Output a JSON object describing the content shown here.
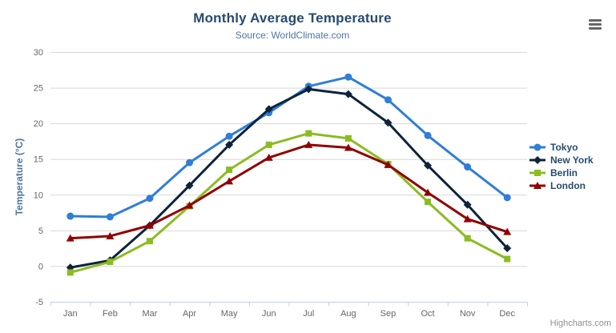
{
  "header": {
    "title": "Monthly Average Temperature",
    "subtitle": "Source: WorldClimate.com"
  },
  "chart_data": {
    "type": "line",
    "title": "Monthly Average Temperature",
    "subtitle": "Source: WorldClimate.com",
    "categories": [
      "Jan",
      "Feb",
      "Mar",
      "Apr",
      "May",
      "Jun",
      "Jul",
      "Aug",
      "Sep",
      "Oct",
      "Nov",
      "Dec"
    ],
    "series": [
      {
        "name": "Tokyo",
        "color": "#2f7ed8",
        "marker": "circle",
        "values": [
          7.0,
          6.9,
          9.5,
          14.5,
          18.2,
          21.5,
          25.2,
          26.5,
          23.3,
          18.3,
          13.9,
          9.6
        ]
      },
      {
        "name": "New York",
        "color": "#0d233a",
        "marker": "diamond",
        "values": [
          -0.2,
          0.8,
          5.7,
          11.3,
          17.0,
          22.0,
          24.8,
          24.1,
          20.1,
          14.1,
          8.6,
          2.5
        ]
      },
      {
        "name": "Berlin",
        "color": "#8bbc21",
        "marker": "square",
        "values": [
          -0.9,
          0.6,
          3.5,
          8.4,
          13.5,
          17.0,
          18.6,
          17.9,
          14.3,
          9.0,
          3.9,
          1.0
        ]
      },
      {
        "name": "London",
        "color": "#910000",
        "marker": "triangle",
        "values": [
          3.9,
          4.2,
          5.7,
          8.5,
          11.9,
          15.2,
          17.0,
          16.6,
          14.2,
          10.3,
          6.6,
          4.8
        ]
      }
    ],
    "xlabel": "",
    "ylabel": "Temperature (°C)",
    "ylim": [
      -5,
      30
    ],
    "yticks": [
      -5,
      0,
      5,
      10,
      15,
      20,
      25,
      30
    ],
    "grid": true,
    "legend_position": "right"
  },
  "credits": {
    "label": "Highcharts.com"
  },
  "icons": {
    "context_menu": "hamburger-icon"
  },
  "colors": {
    "title": "#274b6d",
    "subtitle": "#4d759e",
    "axis_label": "#666666",
    "axis_title": "#4d759e",
    "grid": "#d8d8d8",
    "axis_line": "#c0d0e0",
    "legend_text": "#274b6d",
    "credits": "#909090",
    "menu_icon": "#666666",
    "background": "#ffffff"
  }
}
